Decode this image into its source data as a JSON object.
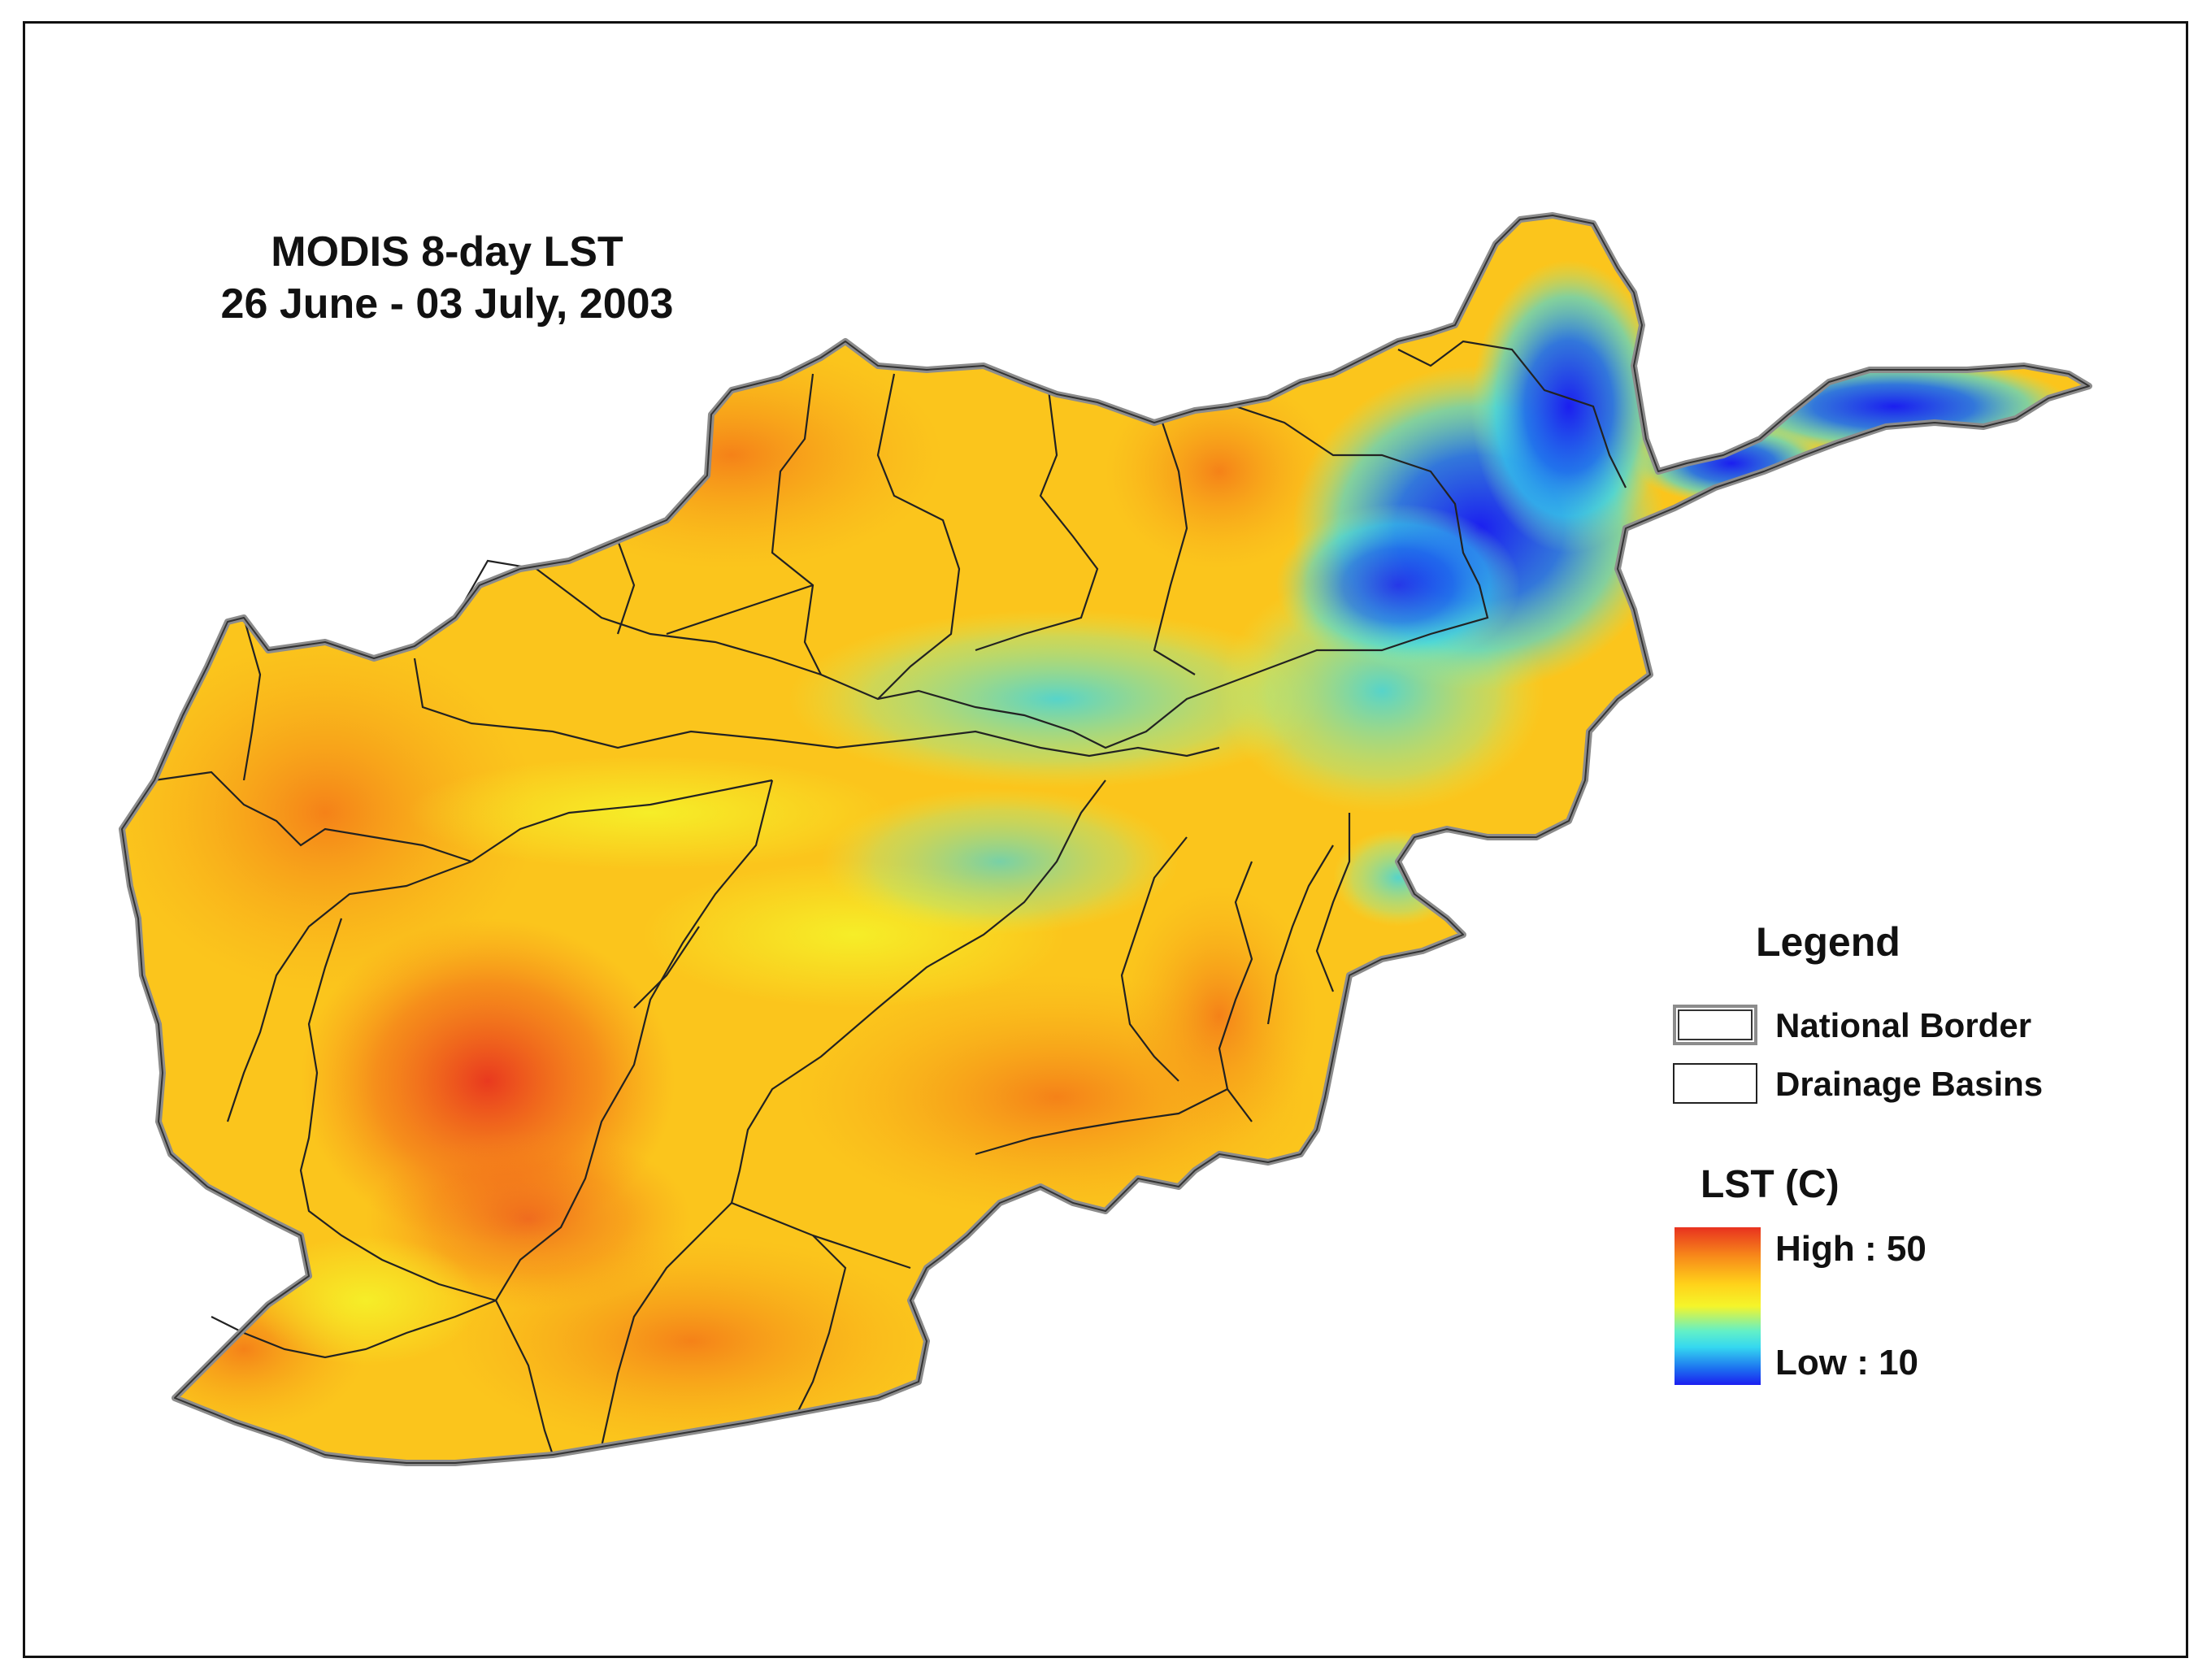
{
  "map": {
    "title_line1": "MODIS 8-day LST",
    "title_line2": "26 June - 03 July, 2003"
  },
  "legend": {
    "title": "Legend",
    "national_border_label": "National Border",
    "drainage_basins_label": "Drainage Basins",
    "lst_title": "LST (C)",
    "high_label": "High : 50",
    "low_label": "Low : 10",
    "high_value": 50,
    "low_value": 10
  },
  "colors": {
    "ramp_high": "#e8321f",
    "ramp_mid_warm": "#ffd21a",
    "ramp_mid_cool": "#35d8f0",
    "ramp_low": "#1b1ef0",
    "national_border": "#8c8c8c",
    "basin_line": "#222222"
  }
}
